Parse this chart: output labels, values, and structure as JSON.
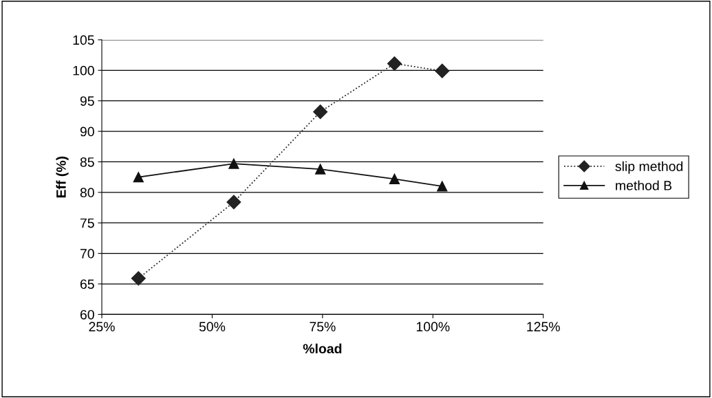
{
  "chart_data": {
    "type": "line",
    "xlabel": "%load",
    "ylabel": "Eff (%)",
    "x": [
      33.3,
      54.9,
      74.5,
      91.3,
      102.1
    ],
    "series": [
      {
        "name": "slip method",
        "color": "#222222",
        "values": [
          65.9,
          78.4,
          93.2,
          101.1,
          99.9
        ],
        "marker": "diamond",
        "line_style": "dotted"
      },
      {
        "name": "method B",
        "color": "#111111",
        "values": [
          82.5,
          84.7,
          83.8,
          82.2,
          81.0
        ],
        "marker": "triangle",
        "line_style": "solid"
      }
    ],
    "xlim": [
      25,
      125
    ],
    "xticks": [
      {
        "value": 25,
        "label": "25%"
      },
      {
        "value": 50,
        "label": "50%"
      },
      {
        "value": 75,
        "label": "75%"
      },
      {
        "value": 100,
        "label": "100%"
      },
      {
        "value": 125,
        "label": "125%"
      }
    ],
    "ylim": [
      60,
      105
    ],
    "yticks": [
      60,
      65,
      70,
      75,
      80,
      85,
      90,
      95,
      100,
      105
    ],
    "grid": "y",
    "legend": "right"
  }
}
